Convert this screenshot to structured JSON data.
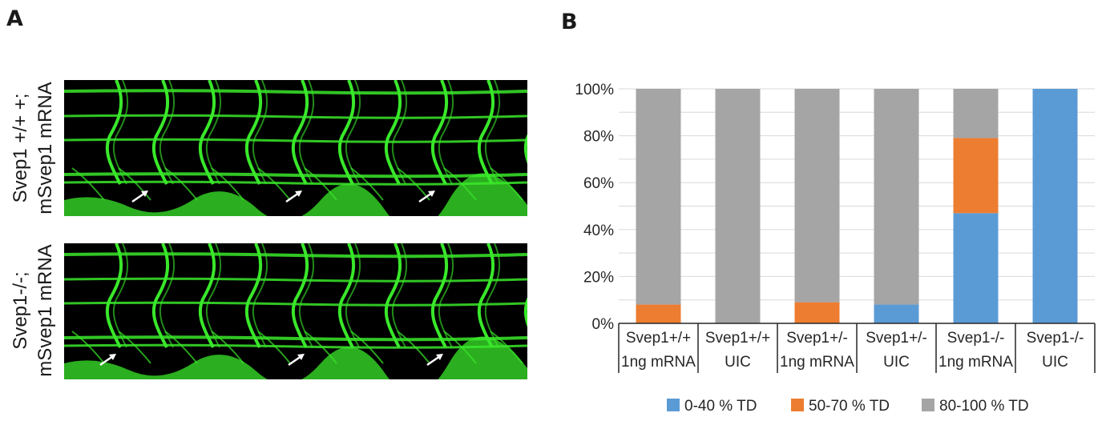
{
  "panels": {
    "a_label": "A",
    "b_label": "B"
  },
  "microscopy": {
    "rows": [
      {
        "label_line1": "Svep1 +/+ +;",
        "label_line2": "mSvep1 mRNA",
        "arrow_count": 3
      },
      {
        "label_line1": "Svep1-/-;",
        "label_line2": "mSvep1 mRNA",
        "arrow_count": 3
      }
    ],
    "vessel_color": "#39e82a",
    "arrow_color": "#ffffff"
  },
  "chart_data": {
    "type": "bar",
    "stacked": true,
    "categories": [
      [
        "Svep1+/+",
        "1ng mRNA"
      ],
      [
        "Svep1+/+",
        "UIC"
      ],
      [
        "Svep1+/-",
        "1ng mRNA"
      ],
      [
        "Svep1+/-",
        "UIC"
      ],
      [
        "Svep1-/-",
        "1ng mRNA"
      ],
      [
        "Svep1-/-",
        "UIC"
      ]
    ],
    "series": [
      {
        "name": "0-40 % TD",
        "color": "#5b9bd5",
        "values": [
          0,
          0,
          0,
          8,
          47,
          100
        ]
      },
      {
        "name": "50-70 % TD",
        "color": "#ed7d31",
        "values": [
          8,
          0,
          9,
          0,
          32,
          0
        ]
      },
      {
        "name": "80-100 % TD",
        "color": "#a5a5a5",
        "values": [
          92,
          100,
          91,
          92,
          21,
          0
        ]
      }
    ],
    "ylim": [
      0,
      100
    ],
    "yticks": [
      "0%",
      "20%",
      "40%",
      "60%",
      "80%",
      "100%"
    ],
    "grid": true,
    "legend_position": "bottom"
  }
}
